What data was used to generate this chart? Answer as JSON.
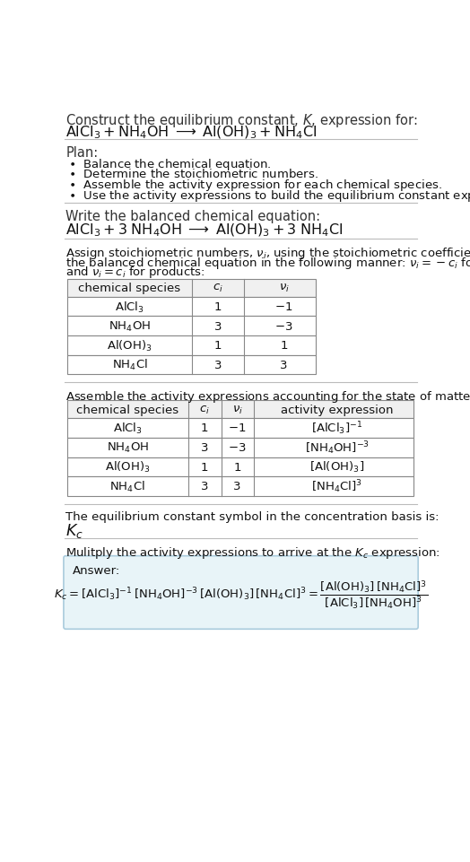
{
  "bg_color": "#ffffff",
  "text_color": "#000000",
  "title_line1": "Construct the equilibrium constant, $K$, expression for:",
  "title_line2_latex": "$\\mathrm{AlCl_3 + NH_4OH \\;\\longrightarrow\\; Al(OH)_3 + NH_4Cl}$",
  "plan_header": "Plan:",
  "plan_items": [
    "$\\bullet$  Balance the chemical equation.",
    "$\\bullet$  Determine the stoichiometric numbers.",
    "$\\bullet$  Assemble the activity expression for each chemical species.",
    "$\\bullet$  Use the activity expressions to build the equilibrium constant expression."
  ],
  "balanced_header": "Write the balanced chemical equation:",
  "balanced_eq": "$\\mathrm{AlCl_3 + 3\\;NH_4OH \\;\\longrightarrow\\; Al(OH)_3 + 3\\;NH_4Cl}$",
  "assign_lines": [
    "Assign stoichiometric numbers, $\\nu_i$, using the stoichiometric coefficients, $c_i$, from",
    "the balanced chemical equation in the following manner: $\\nu_i = -c_i$ for reactants",
    "and $\\nu_i = c_i$ for products:"
  ],
  "table1_cols": [
    "chemical species",
    "$c_i$",
    "$\\nu_i$"
  ],
  "table1_rows": [
    [
      "$\\mathrm{AlCl_3}$",
      "1",
      "$-1$"
    ],
    [
      "$\\mathrm{NH_4OH}$",
      "3",
      "$-3$"
    ],
    [
      "$\\mathrm{Al(OH)_3}$",
      "1",
      "1"
    ],
    [
      "$\\mathrm{NH_4Cl}$",
      "3",
      "3"
    ]
  ],
  "assemble_header": "Assemble the activity expressions accounting for the state of matter and $\\nu_i$:",
  "table2_cols": [
    "chemical species",
    "$c_i$",
    "$\\nu_i$",
    "activity expression"
  ],
  "table2_rows": [
    [
      "$\\mathrm{AlCl_3}$",
      "1",
      "$-1$",
      "$[\\mathrm{AlCl_3}]^{-1}$"
    ],
    [
      "$\\mathrm{NH_4OH}$",
      "3",
      "$-3$",
      "$[\\mathrm{NH_4OH}]^{-3}$"
    ],
    [
      "$\\mathrm{Al(OH)_3}$",
      "1",
      "1",
      "$[\\mathrm{Al(OH)_3}]$"
    ],
    [
      "$\\mathrm{NH_4Cl}$",
      "3",
      "3",
      "$[\\mathrm{NH_4Cl}]^3$"
    ]
  ],
  "kc_header": "The equilibrium constant symbol in the concentration basis is:",
  "kc_symbol": "$K_c$",
  "multiply_header": "Mulitply the activity expressions to arrive at the $K_c$ expression:",
  "answer_label": "Answer:",
  "answer_box_color": "#e8f4f8",
  "answer_box_border": "#aaccdd",
  "answer_eq_left": "$K_c = [\\mathrm{AlCl_3}]^{-1}\\,[\\mathrm{NH_4OH}]^{-3}\\,[\\mathrm{Al(OH)_3}]\\,[\\mathrm{NH_4Cl}]^3 = \\dfrac{[\\mathrm{Al(OH)_3}]\\,[\\mathrm{NH_4Cl}]^3}{[\\mathrm{AlCl_3}]\\,[\\mathrm{NH_4OH}]^3}$"
}
